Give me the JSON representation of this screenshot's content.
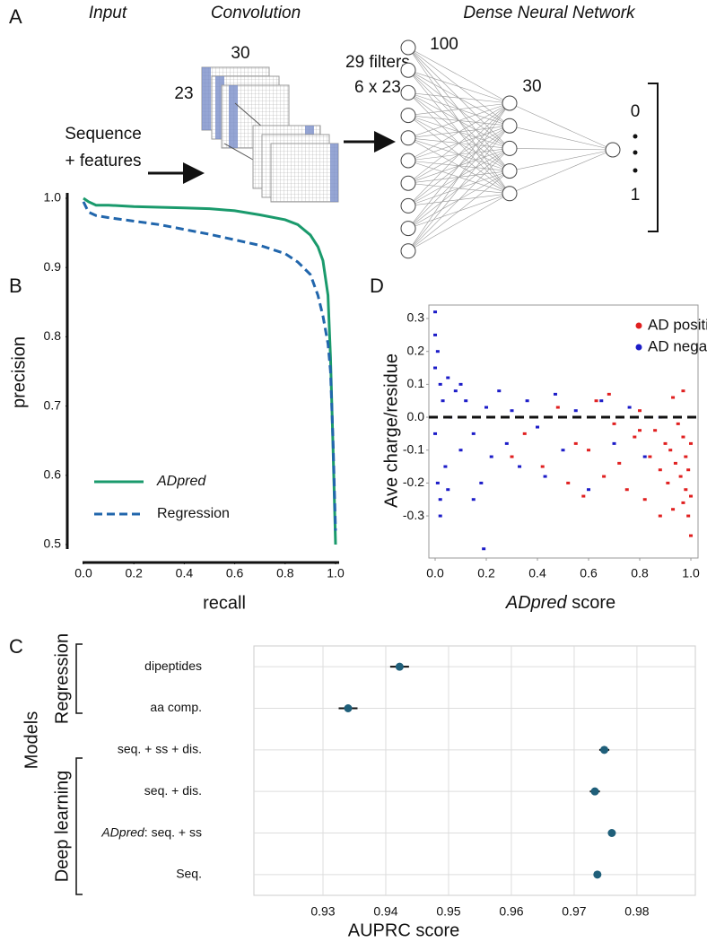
{
  "diagram": {
    "panel_label": "A",
    "headers": [
      "Input",
      "Convolution",
      "Dense Neural Network"
    ],
    "input": [
      "Sequence",
      "+ features"
    ],
    "conv_width": "30",
    "conv_height": "23",
    "filters": [
      "29 filters",
      "6 x 23"
    ],
    "layers": [
      "100",
      "30"
    ],
    "output": [
      "0",
      "1"
    ]
  },
  "chart_data": [
    {
      "type": "line",
      "panel_label": "B",
      "xlabel": "recall",
      "ylabel": "precision",
      "x": [
        0,
        0.02,
        0.05,
        0.1,
        0.2,
        0.3,
        0.4,
        0.5,
        0.6,
        0.7,
        0.8,
        0.85,
        0.9,
        0.93,
        0.95,
        0.97,
        0.98,
        0.99,
        1.0
      ],
      "series": [
        {
          "name": "ADpred",
          "color": "#1a9a6c",
          "line_style": "solid",
          "values": [
            1.0,
            0.995,
            0.99,
            0.99,
            0.988,
            0.987,
            0.986,
            0.985,
            0.982,
            0.976,
            0.969,
            0.962,
            0.947,
            0.93,
            0.91,
            0.86,
            0.77,
            0.64,
            0.5
          ]
        },
        {
          "name": "Regression",
          "color": "#2166ac",
          "line_style": "dashed",
          "values": [
            0.995,
            0.98,
            0.975,
            0.972,
            0.967,
            0.962,
            0.955,
            0.948,
            0.94,
            0.932,
            0.92,
            0.908,
            0.89,
            0.86,
            0.83,
            0.79,
            0.75,
            0.65,
            0.52
          ]
        }
      ],
      "xlim": [
        0,
        1
      ],
      "ylim": [
        0.5,
        1.0
      ],
      "xticks": [
        {
          "value": 0,
          "label": "0.0"
        },
        0.2,
        0.4,
        0.6,
        0.8,
        {
          "value": 1,
          "label": "1.0"
        }
      ],
      "yticks": [
        {
          "value": 1,
          "label": "1.0"
        },
        0.9,
        0.8,
        0.7,
        0.6,
        0.5
      ],
      "legend": "lower left"
    },
    {
      "type": "scatter",
      "panel_label": "D",
      "xlabel": "ADpred score",
      "ylabel": "Ave charge/residue",
      "series": [
        {
          "name": "AD positive",
          "color": "#e02020",
          "x": [
            0.3,
            0.35,
            0.42,
            0.48,
            0.52,
            0.55,
            0.6,
            0.63,
            0.66,
            0.7,
            0.72,
            0.75,
            0.78,
            0.8,
            0.82,
            0.84,
            0.86,
            0.88,
            0.9,
            0.91,
            0.92,
            0.93,
            0.94,
            0.95,
            0.96,
            0.97,
            0.97,
            0.98,
            0.98,
            0.99,
            0.99,
            1.0,
            1.0,
            1.0,
            0.97,
            0.93,
            0.88,
            0.8,
            0.68,
            0.58
          ],
          "values": [
            -0.12,
            -0.05,
            -0.15,
            0.03,
            -0.2,
            -0.08,
            -0.1,
            0.05,
            -0.18,
            -0.02,
            -0.14,
            -0.22,
            -0.06,
            0.02,
            -0.25,
            -0.12,
            -0.04,
            -0.16,
            -0.08,
            -0.2,
            -0.1,
            0.06,
            -0.14,
            -0.02,
            -0.18,
            -0.26,
            -0.06,
            -0.12,
            -0.22,
            -0.3,
            -0.16,
            -0.36,
            -0.08,
            -0.24,
            0.08,
            -0.28,
            -0.3,
            -0.04,
            0.07,
            -0.24
          ]
        },
        {
          "name": "AD negative",
          "color": "#1c1cc8",
          "x": [
            0,
            0,
            0,
            0,
            0.01,
            0.01,
            0.02,
            0.02,
            0.03,
            0.04,
            0.05,
            0.06,
            0.08,
            0.1,
            0.12,
            0.15,
            0.18,
            0.2,
            0.22,
            0.25,
            0.28,
            0.3,
            0.33,
            0.36,
            0.4,
            0.43,
            0.47,
            0.5,
            0.55,
            0.6,
            0.65,
            0.7,
            0.76,
            0.82,
            0.88,
            0.02,
            0.05,
            0.1,
            0.15,
            0.19
          ],
          "values": [
            0.32,
            0.25,
            0.15,
            -0.05,
            0.2,
            -0.2,
            0.1,
            -0.25,
            0.05,
            -0.15,
            0.12,
            0,
            0.08,
            -0.1,
            0.05,
            -0.05,
            -0.2,
            0.03,
            -0.12,
            0.08,
            -0.08,
            0.02,
            -0.15,
            0.05,
            -0.03,
            -0.18,
            0.07,
            -0.1,
            0.02,
            -0.22,
            0.05,
            -0.08,
            0.03,
            -0.12,
            0.0,
            -0.3,
            -0.22,
            0.1,
            -0.25,
            -0.4
          ]
        }
      ],
      "xlim": [
        -0.0246,
        1.028
      ],
      "ylim": [
        -0.428,
        0.341
      ],
      "xticks": [
        {
          "value": 0,
          "label": "0.0"
        },
        0.2,
        0.4,
        0.6,
        0.8,
        {
          "value": 1,
          "label": "1.0"
        }
      ],
      "yticks": [
        0.3,
        0.2,
        0.1,
        {
          "value": 0,
          "label": "0.0"
        },
        -0.1,
        -0.2,
        -0.3
      ],
      "hline": 0,
      "legend": "upper right"
    },
    {
      "type": "dot",
      "panel_label": "C",
      "xlabel": "AUPRC score",
      "ylabel": "Models",
      "categories": [
        "dipeptides",
        "aa comp.",
        "seq. + ss + dis.",
        "seq. + dis.",
        "ADpred: seq. + ss",
        "Seq."
      ],
      "values": [
        0.9422,
        0.934,
        0.9748,
        0.9733,
        0.976,
        0.9737
      ],
      "errors": [
        0.0015,
        0.0015,
        0.0008,
        0.0008,
        0.0006,
        0.0006
      ],
      "color": "#1f5f7a",
      "groups": [
        "Regression",
        "Deep learning"
      ],
      "xlim": [
        0.919,
        0.9893
      ],
      "xticks": [
        0.93,
        0.94,
        0.95,
        0.96,
        0.97,
        0.98
      ],
      "grid": true
    }
  ]
}
